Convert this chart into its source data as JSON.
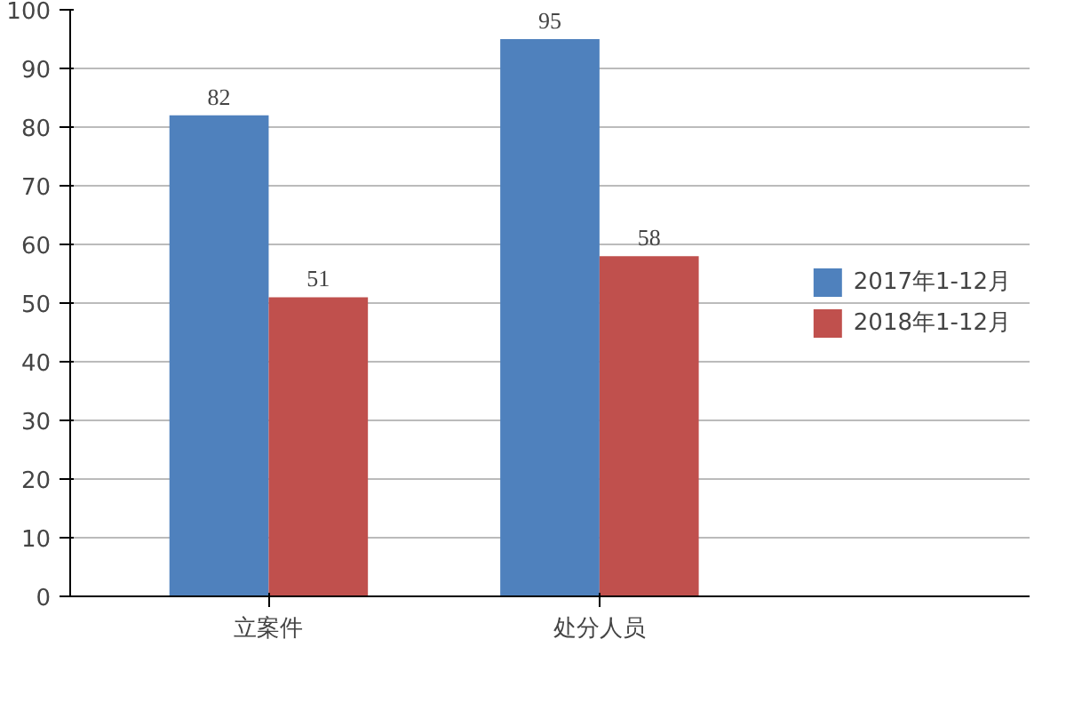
{
  "chart_data": {
    "type": "bar",
    "categories": [
      "立案件",
      "处分人员"
    ],
    "series": [
      {
        "name": "2017年1-12月",
        "color": "#4f81bd",
        "values": [
          82,
          95
        ]
      },
      {
        "name": "2018年1-12月",
        "color": "#c0504d",
        "values": [
          51,
          58
        ]
      }
    ],
    "ylim": [
      0,
      100
    ],
    "yticks": [
      0,
      10,
      20,
      30,
      40,
      50,
      60,
      70,
      80,
      90,
      100
    ],
    "grid": "y",
    "legend": "right",
    "data_labels": true
  }
}
